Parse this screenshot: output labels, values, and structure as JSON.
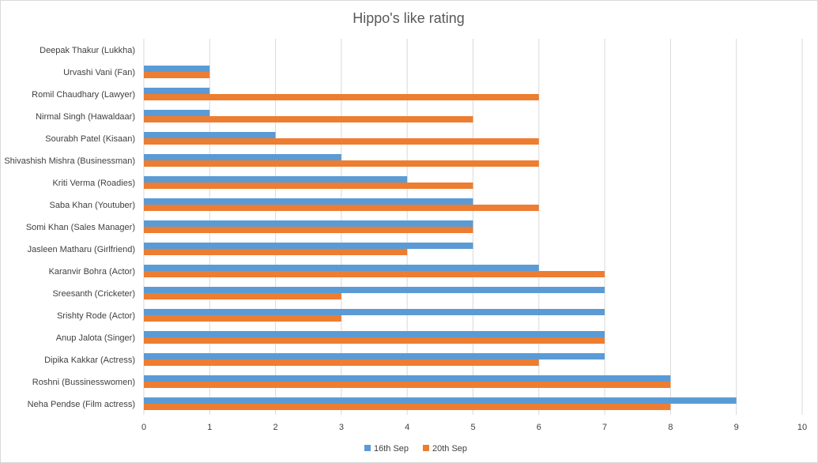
{
  "chart_data": {
    "type": "bar",
    "orientation": "horizontal",
    "title": "Hippo's like rating",
    "categories": [
      "Deepak Thakur (Lukkha)",
      "Urvashi Vani (Fan)",
      "Romil Chaudhary (Lawyer)",
      "Nirmal Singh (Hawaldaar)",
      "Sourabh Patel (Kisaan)",
      "Shivashish Mishra (Businessman)",
      "Kriti Verma (Roadies)",
      "Saba Khan (Youtuber)",
      "Somi Khan (Sales Manager)",
      "Jasleen Matharu (Girlfriend)",
      "Karanvir Bohra (Actor)",
      "Sreesanth (Cricketer)",
      "Srishty Rode (Actor)",
      "Anup Jalota (Singer)",
      "Dipika Kakkar (Actress)",
      "Roshni (Bussinesswomen)",
      "Neha Pendse (Film actress)"
    ],
    "series": [
      {
        "name": "16th Sep",
        "color": "#5b9bd5",
        "values": [
          0,
          1,
          1,
          1,
          2,
          3,
          4,
          5,
          5,
          5,
          6,
          7,
          7,
          7,
          7,
          8,
          9
        ]
      },
      {
        "name": "20th Sep",
        "color": "#ed7d31",
        "values": [
          0,
          1,
          6,
          5,
          6,
          6,
          5,
          6,
          5,
          4,
          7,
          3,
          3,
          7,
          6,
          8,
          8
        ]
      }
    ],
    "xlim": [
      0,
      10
    ],
    "xticks": [
      "0",
      "1",
      "2",
      "3",
      "4",
      "5",
      "6",
      "7",
      "8",
      "9",
      "10"
    ],
    "grid": true,
    "legend_position": "bottom"
  }
}
